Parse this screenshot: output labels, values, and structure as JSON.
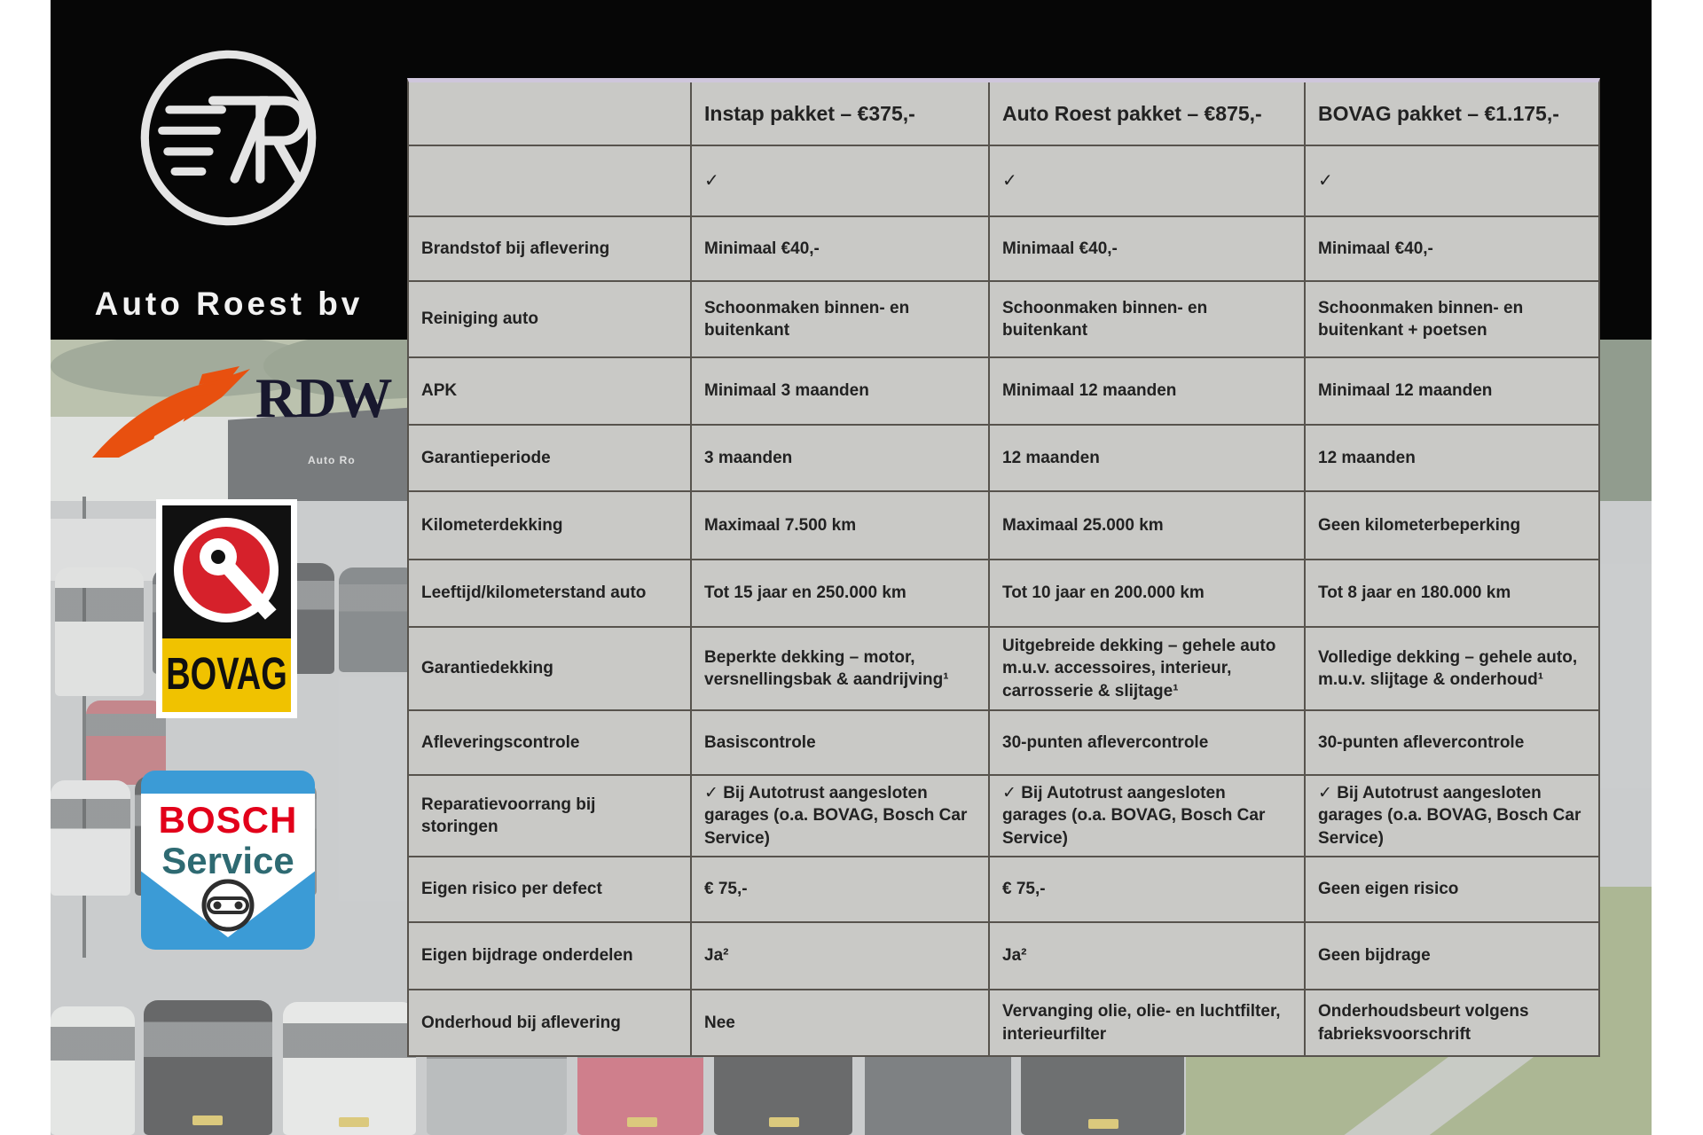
{
  "branding": {
    "dealer_name": "Auto Roest bv",
    "monogram": "7R",
    "rdw_label": "RDW",
    "bovag_label": "BOVAG",
    "bosch_line1": "BOSCH",
    "bosch_line2": "Service"
  },
  "background": {
    "building_sign": "Auto Ro"
  },
  "colors": {
    "band_black": "#060606",
    "table_cell_gray": "#c9c9c6",
    "table_border": "#57534d",
    "table_top_accent": "#cfc6dc",
    "rdw_orange": "#e8500f",
    "bovag_red": "#d6212b",
    "bovag_yellow": "#f0c200",
    "bosch_blue": "#3b9bd6",
    "bosch_red": "#e2001a",
    "bosch_service_teal": "#2e6a72"
  },
  "table": {
    "columns": [
      "",
      "Instap pakket – €375,-",
      "Auto Roest pakket – €875,-",
      "BOVAG pakket – €1.175,-"
    ],
    "rows": [
      {
        "label": "",
        "cells": [
          "✓",
          "✓",
          "✓"
        ]
      },
      {
        "label": "Brandstof bij aflevering",
        "cells": [
          "Minimaal €40,-",
          "Minimaal €40,-",
          "Minimaal €40,-"
        ]
      },
      {
        "label": "Reiniging auto",
        "cells": [
          "Schoonmaken binnen- en buitenkant",
          "Schoonmaken binnen- en buitenkant",
          "Schoonmaken binnen- en buitenkant + poetsen"
        ]
      },
      {
        "label": "APK",
        "cells": [
          "Minimaal 3 maanden",
          "Minimaal 12 maanden",
          "Minimaal 12 maanden"
        ]
      },
      {
        "label": "Garantieperiode",
        "cells": [
          "3 maanden",
          "12 maanden",
          "12 maanden"
        ]
      },
      {
        "label": "Kilometerdekking",
        "cells": [
          "Maximaal 7.500 km",
          "Maximaal 25.000 km",
          "Geen kilometerbeperking"
        ]
      },
      {
        "label": "Leeftijd/kilometerstand auto",
        "cells": [
          "Tot 15 jaar en 250.000 km",
          "Tot 10 jaar en 200.000 km",
          "Tot 8 jaar en 180.000 km"
        ]
      },
      {
        "label": "Garantiedekking",
        "cells": [
          "Beperkte dekking – motor, versnellingsbak & aandrijving¹",
          "Uitgebreide dekking – gehele auto m.u.v. accessoires, interieur, carrosserie & slijtage¹",
          "Volledige dekking – gehele auto, m.u.v. slijtage & onderhoud¹"
        ]
      },
      {
        "label": "Afleveringscontrole",
        "cells": [
          "Basiscontrole",
          "30-punten aflevercontrole",
          "30-punten aflevercontrole"
        ]
      },
      {
        "label": "Reparatievoorrang bij storingen",
        "cells": [
          "✓ Bij Autotrust aangesloten garages (o.a. BOVAG, Bosch Car Service)",
          "✓ Bij Autotrust aangesloten garages (o.a. BOVAG, Bosch Car Service)",
          "✓ Bij Autotrust aangesloten garages (o.a. BOVAG, Bosch Car Service)"
        ]
      },
      {
        "label": "Eigen risico per defect",
        "cells": [
          "€ 75,-",
          "€ 75,-",
          "Geen eigen risico"
        ]
      },
      {
        "label": "Eigen bijdrage onderdelen",
        "cells": [
          "Ja²",
          "Ja²",
          "Geen bijdrage"
        ]
      },
      {
        "label": "Onderhoud bij aflevering",
        "cells": [
          "Nee",
          "Vervanging olie, olie- en luchtfilter, interieurfilter",
          "Onderhoudsbeurt volgens fabrieksvoorschrift"
        ]
      }
    ]
  }
}
